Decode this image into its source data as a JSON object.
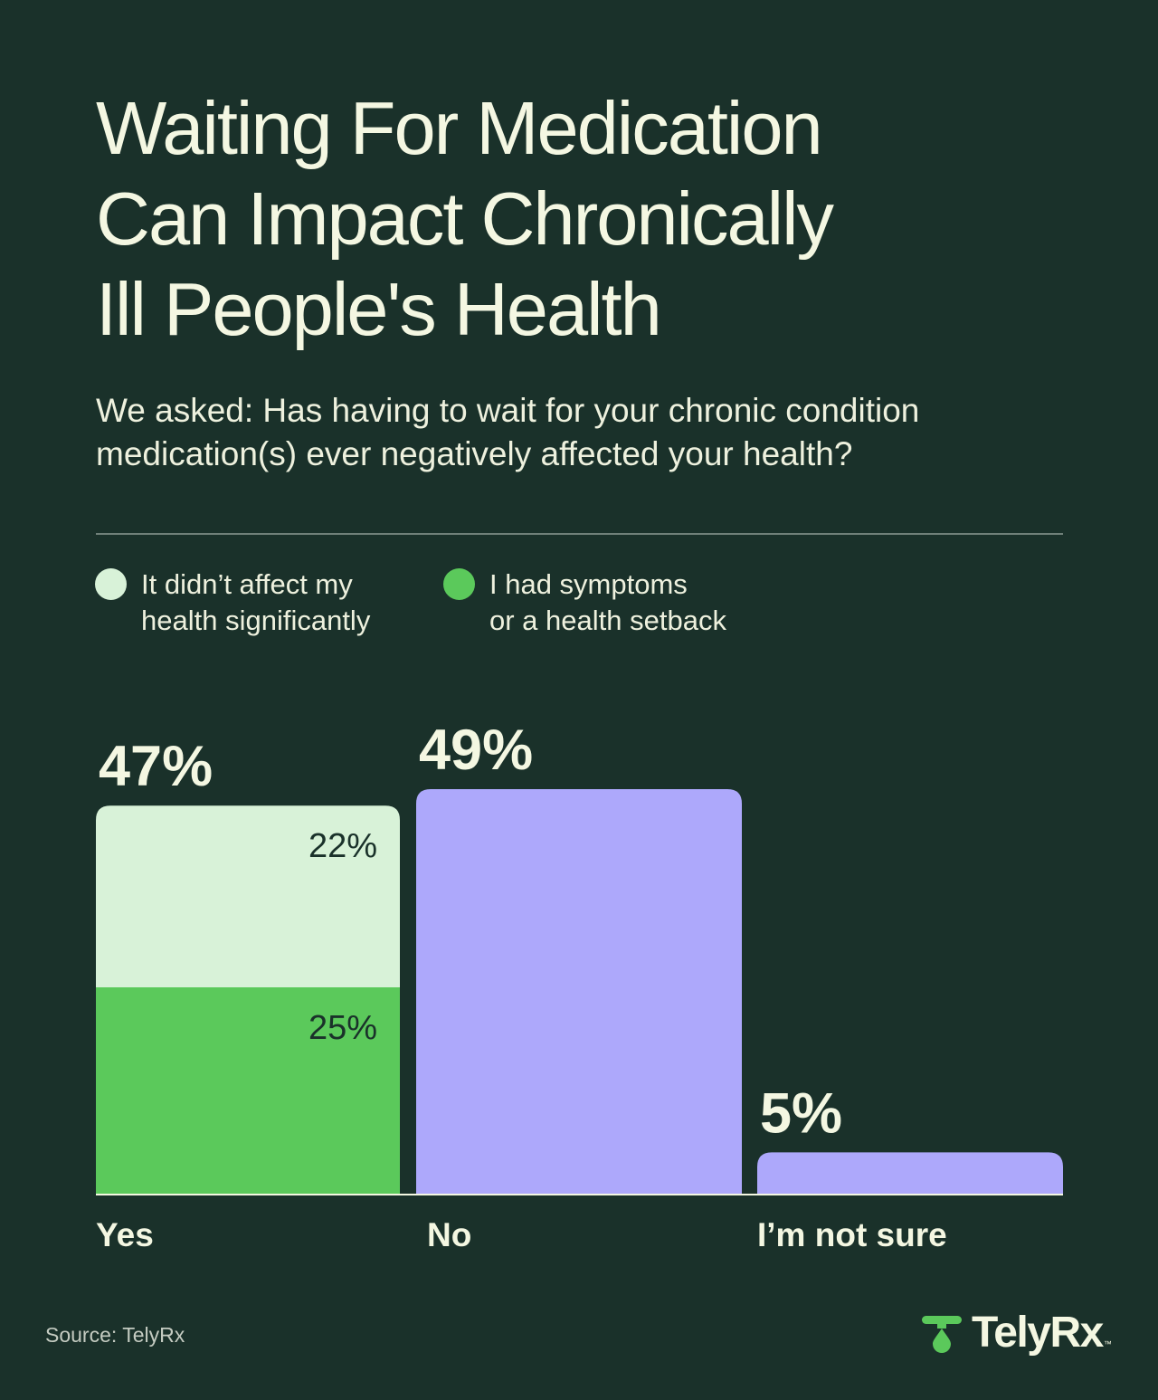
{
  "header": {
    "title_lines": [
      "Waiting For Medication",
      "Can Impact Chronically",
      "Ill People's Health"
    ],
    "subtitle_lines": [
      "We asked: Has having to wait for your chronic condition",
      "medication(s) ever negatively affected your health?"
    ]
  },
  "legend": [
    {
      "lines": [
        "It didn’t affect my",
        "health significantly"
      ],
      "color": "#d8f2d8"
    },
    {
      "lines": [
        "I had symptoms",
        "or a health setback"
      ],
      "color": "#5bc95b"
    }
  ],
  "colors": {
    "background": "#1a312a",
    "no_health_effect": "#d8f2d8",
    "health_setback": "#5bc95b",
    "other_answers": "#ada8fb",
    "text_light": "#f4f7e2",
    "text_dark": "#1a312a"
  },
  "chart_data": {
    "type": "bar",
    "categories": [
      "Yes",
      "No",
      "I’m not sure"
    ],
    "values": [
      47,
      49,
      5
    ],
    "value_labels": [
      "47%",
      "49%",
      "5%"
    ],
    "stacked_segments": {
      "Yes": [
        {
          "series": "I had symptoms or a health setback",
          "value": 25,
          "label": "25%"
        },
        {
          "series": "It didn’t affect my health significantly",
          "value": 22,
          "label": "22%"
        }
      ]
    },
    "ylim": [
      0,
      49
    ],
    "grid": false,
    "legend_position": "top-left"
  },
  "footer": {
    "source": "Source: TelyRx",
    "brand": "TelyRx",
    "brand_tm": "™"
  }
}
